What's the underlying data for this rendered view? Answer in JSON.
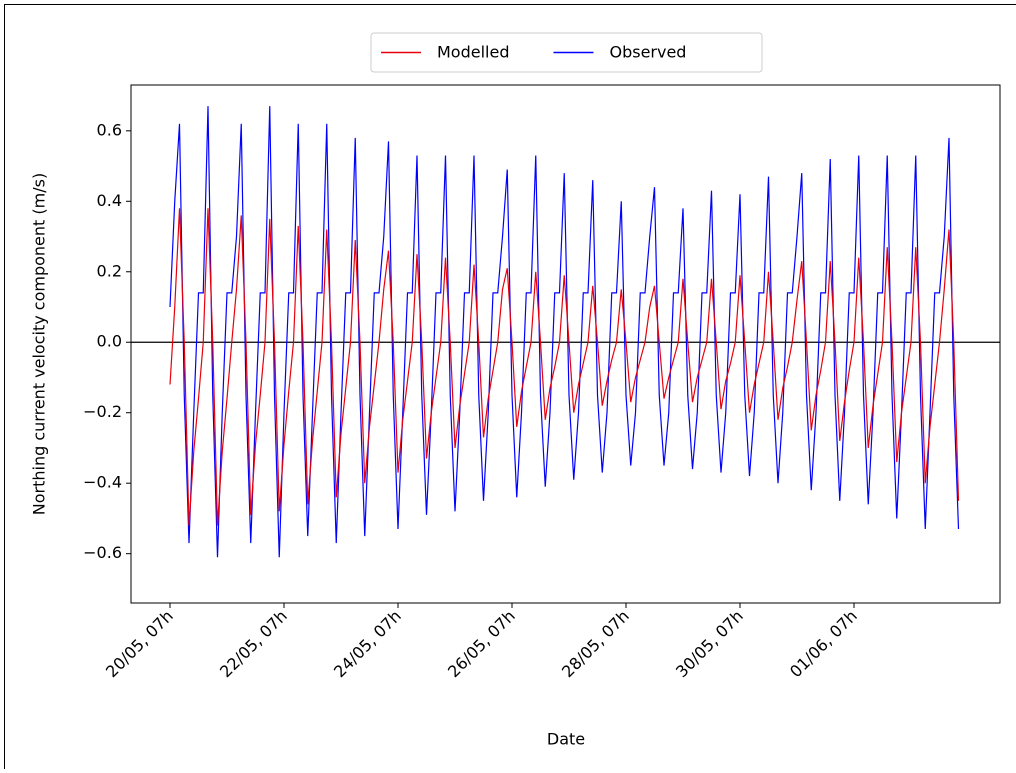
{
  "chart_data": {
    "type": "line",
    "y_label": "Northing current velocity component (m/s)",
    "x_label": "Date",
    "x": [
      "20/05, 07h",
      "20/05, 09h",
      "20/05, 11h",
      "20/05, 13h",
      "20/05, 15h",
      "20/05, 17h",
      "20/05, 19h",
      "20/05, 21h",
      "20/05, 23h",
      "21/05, 01h",
      "21/05, 03h",
      "21/05, 05h",
      "21/05, 07h",
      "21/05, 09h",
      "21/05, 11h",
      "21/05, 13h",
      "21/05, 15h",
      "21/05, 17h",
      "21/05, 19h",
      "21/05, 21h",
      "21/05, 23h",
      "22/05, 01h",
      "22/05, 03h",
      "22/05, 05h",
      "22/05, 07h",
      "22/05, 09h",
      "22/05, 11h",
      "22/05, 13h",
      "22/05, 15h",
      "22/05, 17h",
      "22/05, 19h",
      "22/05, 21h",
      "22/05, 23h",
      "23/05, 01h",
      "23/05, 03h",
      "23/05, 05h",
      "23/05, 07h",
      "23/05, 09h",
      "23/05, 11h",
      "23/05, 13h",
      "23/05, 15h",
      "23/05, 17h",
      "23/05, 19h",
      "23/05, 21h",
      "23/05, 23h",
      "24/05, 01h",
      "24/05, 03h",
      "24/05, 05h",
      "24/05, 07h",
      "24/05, 09h",
      "24/05, 11h",
      "24/05, 13h",
      "24/05, 15h",
      "24/05, 17h",
      "24/05, 19h",
      "24/05, 21h",
      "24/05, 23h",
      "25/05, 01h",
      "25/05, 03h",
      "25/05, 05h",
      "25/05, 07h",
      "25/05, 09h",
      "25/05, 11h",
      "25/05, 13h",
      "25/05, 15h",
      "25/05, 17h",
      "25/05, 19h",
      "25/05, 21h",
      "25/05, 23h",
      "26/05, 01h",
      "26/05, 03h",
      "26/05, 05h",
      "26/05, 07h",
      "26/05, 09h",
      "26/05, 11h",
      "26/05, 13h",
      "26/05, 15h",
      "26/05, 17h",
      "26/05, 19h",
      "26/05, 21h",
      "26/05, 23h",
      "27/05, 01h",
      "27/05, 03h",
      "27/05, 05h",
      "27/05, 07h",
      "27/05, 09h",
      "27/05, 11h",
      "27/05, 13h",
      "27/05, 15h",
      "27/05, 17h",
      "27/05, 19h",
      "27/05, 21h",
      "27/05, 23h",
      "28/05, 01h",
      "28/05, 03h",
      "28/05, 05h",
      "28/05, 07h",
      "28/05, 09h",
      "28/05, 11h",
      "28/05, 13h",
      "28/05, 15h",
      "28/05, 17h",
      "28/05, 19h",
      "28/05, 21h",
      "28/05, 23h",
      "29/05, 01h",
      "29/05, 03h",
      "29/05, 05h",
      "29/05, 07h",
      "29/05, 09h",
      "29/05, 11h",
      "29/05, 13h",
      "29/05, 15h",
      "29/05, 17h",
      "29/05, 19h",
      "29/05, 21h",
      "29/05, 23h",
      "30/05, 01h",
      "30/05, 03h",
      "30/05, 05h",
      "30/05, 07h",
      "30/05, 09h",
      "30/05, 11h",
      "30/05, 13h",
      "30/05, 15h",
      "30/05, 17h",
      "30/05, 19h",
      "30/05, 21h",
      "30/05, 23h",
      "31/05, 01h",
      "31/05, 03h",
      "31/05, 05h",
      "31/05, 07h",
      "31/05, 09h",
      "31/05, 11h",
      "31/05, 13h",
      "31/05, 15h",
      "31/05, 17h",
      "31/05, 19h",
      "31/05, 21h",
      "31/05, 23h",
      "01/06, 01h",
      "01/06, 03h",
      "01/06, 05h",
      "01/06, 07h",
      "01/06, 09h",
      "01/06, 11h",
      "01/06, 13h",
      "01/06, 15h",
      "01/06, 17h",
      "01/06, 19h",
      "01/06, 21h",
      "01/06, 23h",
      "02/06, 01h",
      "02/06, 03h",
      "02/06, 05h",
      "02/06, 07h",
      "02/06, 09h",
      "02/06, 11h",
      "02/06, 13h",
      "02/06, 15h",
      "02/06, 17h",
      "02/06, 19h",
      "02/06, 21h",
      "02/06, 23h",
      "03/06, 01h",
      "03/06, 03h"
    ],
    "xticks": [
      "20/05, 07h",
      "22/05, 07h",
      "24/05, 07h",
      "26/05, 07h",
      "28/05, 07h",
      "30/05, 07h",
      "01/06, 07h"
    ],
    "series": [
      {
        "name": "Modelled",
        "color": "#e8000b",
        "values": [
          -0.12,
          0.1,
          0.38,
          0,
          -0.52,
          -0.31,
          -0.16,
          0,
          0.38,
          0,
          -0.52,
          -0.31,
          -0.16,
          0,
          0.15,
          0.36,
          0,
          -0.49,
          -0.29,
          -0.15,
          0,
          0.35,
          0,
          -0.48,
          -0.29,
          -0.14,
          0,
          0.33,
          0,
          -0.46,
          -0.28,
          -0.14,
          0,
          0.32,
          0,
          -0.44,
          -0.26,
          -0.13,
          0,
          0.29,
          0,
          -0.4,
          -0.24,
          -0.12,
          0,
          0.15,
          0.26,
          0,
          -0.37,
          -0.22,
          -0.11,
          0,
          0.25,
          0,
          -0.33,
          -0.2,
          -0.1,
          0,
          0.24,
          0,
          -0.3,
          -0.18,
          -0.09,
          0,
          0.22,
          0,
          -0.27,
          -0.16,
          -0.08,
          0,
          0.15,
          0.21,
          0,
          -0.24,
          -0.14,
          -0.07,
          0,
          0.2,
          0,
          -0.22,
          -0.13,
          -0.07,
          0,
          0.19,
          0,
          -0.2,
          -0.12,
          -0.06,
          0,
          0.16,
          0,
          -0.18,
          -0.11,
          -0.05,
          0,
          0.15,
          0,
          -0.17,
          -0.1,
          -0.05,
          0,
          0.1,
          0.16,
          0,
          -0.16,
          -0.1,
          -0.05,
          0,
          0.18,
          0,
          -0.17,
          -0.1,
          -0.05,
          0,
          0.18,
          0,
          -0.19,
          -0.11,
          -0.06,
          0,
          0.19,
          0,
          -0.2,
          -0.12,
          -0.06,
          0,
          0.2,
          0,
          -0.22,
          -0.13,
          -0.07,
          0,
          0.12,
          0.23,
          0,
          -0.25,
          -0.15,
          -0.08,
          0,
          0.23,
          0,
          -0.28,
          -0.17,
          -0.08,
          0,
          0.24,
          0,
          -0.3,
          -0.18,
          -0.09,
          0,
          0.27,
          0,
          -0.34,
          -0.2,
          -0.1,
          0,
          0.27,
          0,
          -0.4,
          -0.24,
          -0.12,
          0,
          0.15,
          0.32,
          0,
          -0.45
        ]
      },
      {
        "name": "Observed",
        "color": "#0000ff",
        "values": [
          0.1,
          0.4,
          0.62,
          -0.15,
          -0.57,
          -0.2,
          0.14,
          0.14,
          0.67,
          -0.15,
          -0.61,
          -0.2,
          0.14,
          0.14,
          0.3,
          0.62,
          -0.15,
          -0.57,
          -0.2,
          0.14,
          0.14,
          0.67,
          -0.15,
          -0.61,
          -0.2,
          0.14,
          0.14,
          0.62,
          -0.15,
          -0.55,
          -0.2,
          0.14,
          0.14,
          0.62,
          -0.15,
          -0.57,
          -0.2,
          0.14,
          0.14,
          0.58,
          -0.15,
          -0.55,
          -0.2,
          0.14,
          0.14,
          0.3,
          0.57,
          -0.15,
          -0.53,
          -0.2,
          0.14,
          0.14,
          0.53,
          -0.15,
          -0.49,
          -0.2,
          0.14,
          0.14,
          0.53,
          -0.15,
          -0.48,
          -0.2,
          0.14,
          0.14,
          0.53,
          -0.15,
          -0.45,
          -0.2,
          0.14,
          0.14,
          0.3,
          0.49,
          -0.15,
          -0.44,
          -0.2,
          0.14,
          0.14,
          0.53,
          -0.15,
          -0.41,
          -0.2,
          0.14,
          0.14,
          0.48,
          -0.15,
          -0.39,
          -0.2,
          0.14,
          0.14,
          0.46,
          -0.15,
          -0.37,
          -0.2,
          0.14,
          0.14,
          0.4,
          -0.15,
          -0.35,
          -0.2,
          0.14,
          0.14,
          0.3,
          0.44,
          -0.15,
          -0.35,
          -0.2,
          0.14,
          0.14,
          0.38,
          -0.15,
          -0.36,
          -0.2,
          0.14,
          0.14,
          0.43,
          -0.15,
          -0.37,
          -0.2,
          0.14,
          0.14,
          0.42,
          -0.15,
          -0.38,
          -0.2,
          0.14,
          0.14,
          0.47,
          -0.15,
          -0.4,
          -0.2,
          0.14,
          0.14,
          0.3,
          0.48,
          -0.15,
          -0.42,
          -0.2,
          0.14,
          0.14,
          0.52,
          -0.15,
          -0.45,
          -0.2,
          0.14,
          0.14,
          0.53,
          -0.15,
          -0.46,
          -0.2,
          0.14,
          0.14,
          0.53,
          -0.15,
          -0.5,
          -0.2,
          0.14,
          0.14,
          0.53,
          -0.15,
          -0.53,
          -0.2,
          0.14,
          0.14,
          0.3,
          0.58,
          -0.15,
          -0.53
        ]
      }
    ],
    "ylim": [
      -0.74,
      0.73
    ],
    "yticks": [
      {
        "value": -0.6,
        "label": "−0.6"
      },
      {
        "value": -0.4,
        "label": "−0.4"
      },
      {
        "value": -0.2,
        "label": "−0.2"
      },
      {
        "value": 0,
        "label": "0.0"
      },
      {
        "value": 0.2,
        "label": "0.2"
      },
      {
        "value": 0.4,
        "label": "0.4"
      },
      {
        "value": 0.6,
        "label": "0.6"
      }
    ],
    "hline": 0,
    "legend": "upper center",
    "grid": false
  }
}
